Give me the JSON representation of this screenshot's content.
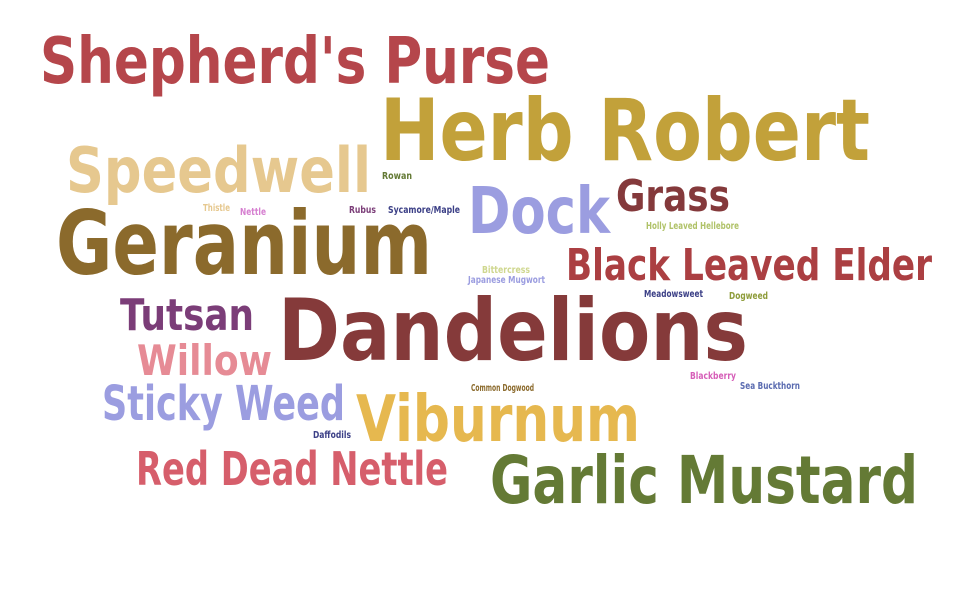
{
  "chart_data": {
    "type": "wordcloud",
    "words": [
      {
        "text": "Shepherd's Purse",
        "color": "#b5464b"
      },
      {
        "text": "Herb Robert",
        "color": "#c2a13a"
      },
      {
        "text": "Speedwell",
        "color": "#e6c88f"
      },
      {
        "text": "Dock",
        "color": "#9b9de0"
      },
      {
        "text": "Grass",
        "color": "#84393b"
      },
      {
        "text": "Geranium",
        "color": "#8b6a2c"
      },
      {
        "text": "Black Leaved Elder",
        "color": "#ab3f42"
      },
      {
        "text": "Tutsan",
        "color": "#7b3d78"
      },
      {
        "text": "Dandelions",
        "color": "#853a3a"
      },
      {
        "text": "Willow",
        "color": "#e68b95"
      },
      {
        "text": "Sticky Weed",
        "color": "#9b9de0"
      },
      {
        "text": "Viburnum",
        "color": "#e6b84f"
      },
      {
        "text": "Red Dead Nettle",
        "color": "#d65e6b"
      },
      {
        "text": "Garlic Mustard",
        "color": "#647a35"
      },
      {
        "text": "Rowan",
        "color": "#647a35"
      },
      {
        "text": "Thistle",
        "color": "#e6c88f"
      },
      {
        "text": "Nettle",
        "color": "#d67fd0"
      },
      {
        "text": "Rubus",
        "color": "#7b3d78"
      },
      {
        "text": "Sycamore/Maple",
        "color": "#3b3f86"
      },
      {
        "text": "Holly Leaved Hellebore",
        "color": "#b0c268"
      },
      {
        "text": "Bittercress",
        "color": "#cfd78f"
      },
      {
        "text": "Japanese Mugwort",
        "color": "#9b9de0"
      },
      {
        "text": "Meadowsweet",
        "color": "#3b3f86"
      },
      {
        "text": "Dogweed",
        "color": "#8e9c3a"
      },
      {
        "text": "Common Dogwood",
        "color": "#8b6a2c"
      },
      {
        "text": "Blackberry",
        "color": "#d65eb8"
      },
      {
        "text": "Sea Buckthorn",
        "color": "#5a6bb0"
      },
      {
        "text": "Daffodils",
        "color": "#3b3f86"
      }
    ]
  }
}
